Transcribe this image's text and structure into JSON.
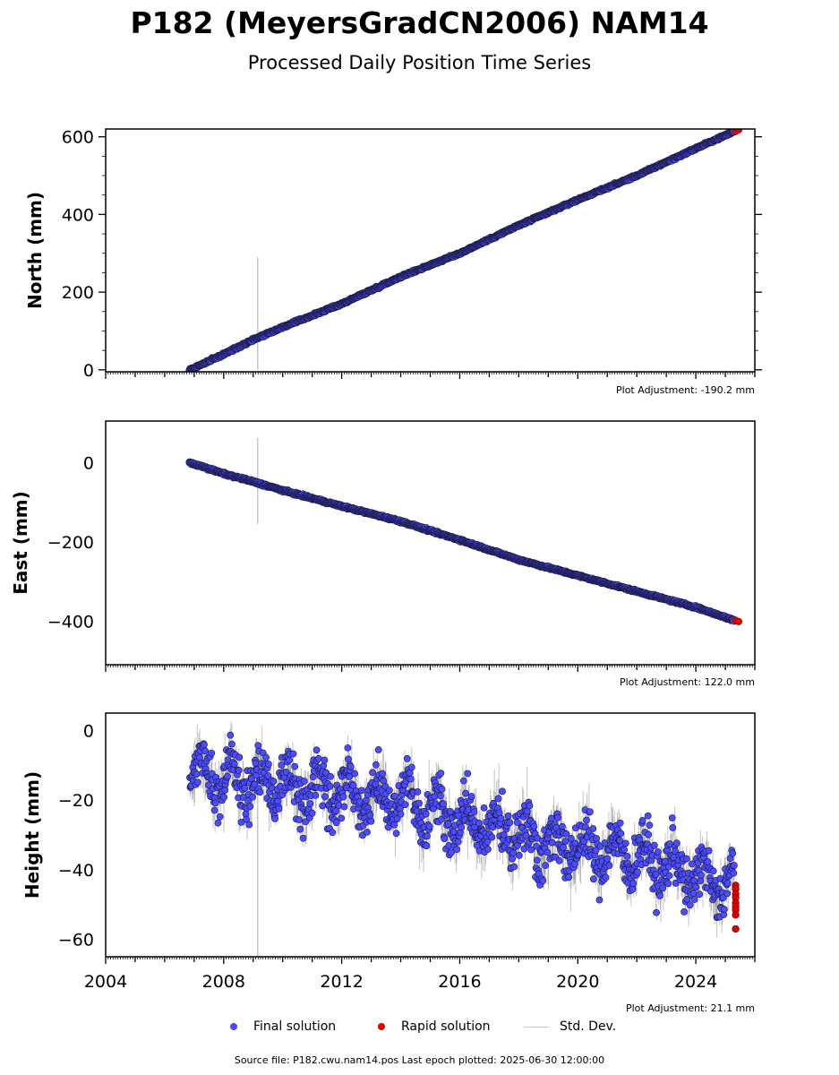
{
  "title": "P182 (MeyersGradCN2006) NAM14",
  "subtitle": "Processed Daily Position Time Series",
  "footer": "Source file: P182.cwu.nam14.pos  Last epoch plotted: 2025-06-30 12:00:00",
  "legend": {
    "final": "Final solution",
    "rapid": "Rapid solution",
    "std": "Std. Dev."
  },
  "colors": {
    "final": "#4b4bff",
    "final_edge": "#1a1a40",
    "rapid": "#e00000",
    "std": "#bbbbbb"
  },
  "chart_data": [
    {
      "type": "scatter",
      "ylabel": "North (mm)",
      "adjustment": "Plot Adjustment: -190.2 mm",
      "xlim": [
        2004,
        2026
      ],
      "ylim": [
        -5,
        620
      ],
      "yticks": [
        0,
        200,
        400,
        600
      ],
      "ytick_labels": [
        "0",
        "200",
        "400",
        "600"
      ],
      "series": [
        {
          "name": "Final solution",
          "x": [
            2006.85,
            2008,
            2009,
            2010,
            2012,
            2014,
            2016,
            2018,
            2020,
            2022,
            2024,
            2025.3
          ],
          "y": [
            0,
            40,
            78,
            110,
            170,
            240,
            300,
            372,
            438,
            500,
            570,
            614
          ]
        },
        {
          "name": "Rapid solution",
          "x": [
            2025.35,
            2025.45
          ],
          "y": [
            614,
            618
          ]
        }
      ],
      "std_spike": {
        "x": 2009.15,
        "ymin": 0,
        "ymax": 290
      }
    },
    {
      "type": "scatter",
      "ylabel": "East (mm)",
      "adjustment": "Plot Adjustment: 122.0 mm",
      "xlim": [
        2004,
        2026
      ],
      "ylim": [
        -510,
        105
      ],
      "yticks": [
        0,
        -200,
        -400
      ],
      "ytick_labels": [
        "0",
        "−200",
        "−400"
      ],
      "series": [
        {
          "name": "Final solution",
          "x": [
            2006.85,
            2008,
            2009,
            2010,
            2012,
            2014,
            2015,
            2016,
            2018,
            2020,
            2022,
            2024,
            2025.3
          ],
          "y": [
            0,
            -28,
            -48,
            -70,
            -110,
            -148,
            -172,
            -195,
            -245,
            -285,
            -325,
            -365,
            -398
          ]
        },
        {
          "name": "Rapid solution",
          "x": [
            2025.35,
            2025.45
          ],
          "y": [
            -398,
            -401
          ]
        }
      ],
      "std_spike": {
        "x": 2009.15,
        "ymin": -155,
        "ymax": 62
      }
    },
    {
      "type": "scatter",
      "ylabel": "Height (mm)",
      "adjustment": "Plot Adjustment: 21.1 mm",
      "xlim": [
        2004,
        2026
      ],
      "ylim": [
        -65,
        5
      ],
      "yticks": [
        0,
        -20,
        -40,
        -60
      ],
      "ytick_labels": [
        "0",
        "−20",
        "−40",
        "−60"
      ],
      "series": [
        {
          "name": "Final solution",
          "x": [
            2006.85,
            2008,
            2010,
            2012,
            2014,
            2016,
            2018,
            2020,
            2022,
            2024,
            2025.3
          ],
          "y": [
            -11,
            -14,
            -16,
            -18,
            -20,
            -26,
            -30,
            -34,
            -36,
            -42,
            -45
          ],
          "scatter_amplitude": 7
        },
        {
          "name": "Rapid solution",
          "x": [
            2025.35,
            2025.35,
            2025.35,
            2025.35,
            2025.35,
            2025.35,
            2025.35,
            2025.35,
            2025.35
          ],
          "y": [
            -44.5,
            -45.5,
            -47,
            -48,
            -49.5,
            -50.5,
            -51.5,
            -53,
            -57
          ]
        }
      ],
      "std_spike": {
        "x": 2009.15,
        "ymin": -65,
        "ymax": -5
      }
    }
  ],
  "xticks": [
    2004,
    2008,
    2012,
    2016,
    2020,
    2024
  ],
  "xtick_labels": [
    "2004",
    "2008",
    "2012",
    "2016",
    "2020",
    "2024"
  ]
}
